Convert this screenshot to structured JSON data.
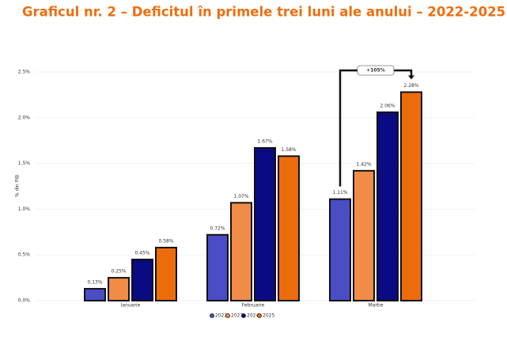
{
  "chart_data": {
    "type": "bar",
    "title": "Graficul nr. 2 – Deficitul în primele trei luni ale anului – 2022-2025",
    "y_label": "% din PIB",
    "annotation": "+105%",
    "categories": [
      "Ianuarie",
      "Februarie",
      "Martie"
    ],
    "series": [
      {
        "name": "2022",
        "color": "#4a4dc4",
        "values": [
          0.13,
          0.72,
          1.11
        ],
        "value_labels": [
          "0.13%",
          "0.72%",
          "1.11%"
        ]
      },
      {
        "name": "2023",
        "color": "#f08c46",
        "values": [
          0.25,
          1.07,
          1.42
        ],
        "value_labels": [
          "0.25%",
          "1.07%",
          "1.42%"
        ]
      },
      {
        "name": "2024",
        "color": "#0a0a82",
        "values": [
          0.45,
          1.67,
          2.06
        ],
        "value_labels": [
          "0.45%",
          "1.67%",
          "2.06%"
        ]
      },
      {
        "name": "2025",
        "color": "#ec6c0c",
        "values": [
          0.58,
          1.58,
          2.28
        ],
        "value_labels": [
          "0.58%",
          "1.58%",
          "2.28%"
        ]
      }
    ],
    "ylim": [
      0,
      2.5
    ],
    "yticks": [
      {
        "value": 0,
        "label": "0.0%"
      },
      {
        "value": 0.5,
        "label": "0.5%"
      },
      {
        "value": 1,
        "label": "1.0%"
      },
      {
        "value": 1.5,
        "label": "1.5%"
      },
      {
        "value": 2,
        "label": "2.0%"
      },
      {
        "value": 2.5,
        "label": "2.5%"
      }
    ],
    "grid": true
  }
}
